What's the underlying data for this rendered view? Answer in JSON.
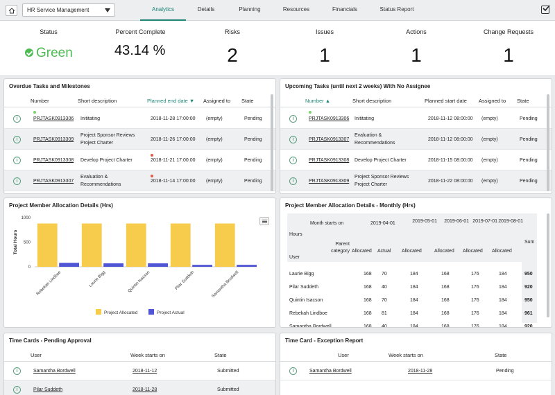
{
  "topbar": {
    "dropdown_value": "HR Service Management",
    "tabs": [
      "Analytics",
      "Details",
      "Planning",
      "Resources",
      "Financials",
      "Status Report"
    ],
    "active_tab": "Analytics"
  },
  "kpis": {
    "status_label": "Status",
    "status_value": "Green",
    "percent_label": "Percent Complete",
    "percent_value": "43.14 %",
    "risks_label": "Risks",
    "risks_value": "2",
    "issues_label": "Issues",
    "issues_value": "1",
    "actions_label": "Actions",
    "actions_value": "1",
    "change_label": "Change Requests",
    "change_value": "1"
  },
  "overdue": {
    "title": "Overdue Tasks and Milestones",
    "columns": [
      "Number",
      "Short description",
      "Planned end date",
      "Assigned to",
      "State"
    ],
    "rows": [
      {
        "number": "PRJTASK0913306",
        "desc1": "Inititating",
        "desc2": "",
        "date": "2018-11-28 17:00:00",
        "assigned": "(empty)",
        "state": "Pending"
      },
      {
        "number": "PRJTASK0913309",
        "desc1": "Project Sponsor Reviews",
        "desc2": "Project Charter",
        "date": "2018-11-26 17:00:00",
        "assigned": "(empty)",
        "state": "Pending"
      },
      {
        "number": "PRJTASK0913308",
        "desc1": "Develop Project Charter",
        "desc2": "",
        "date": "2018-11-21 17:00:00",
        "assigned": "(empty)",
        "state": "Pending"
      },
      {
        "number": "PRJTASK0913307",
        "desc1": "Evaluation &",
        "desc2": "Recommendations",
        "date": "2018-11-14 17:00:00",
        "assigned": "(empty)",
        "state": "Pending"
      }
    ]
  },
  "upcoming": {
    "title": "Upcoming Tasks (until next 2 weeks) With No Assignee",
    "columns": [
      "Number",
      "Short description",
      "Planned start date",
      "Assigned to",
      "State"
    ],
    "rows": [
      {
        "number": "PRJTASK0913306",
        "desc1": "Inititating",
        "desc2": "",
        "date": "2018-11-12 08:00:00",
        "assigned": "(empty)",
        "state": "Pending"
      },
      {
        "number": "PRJTASK0913307",
        "desc1": "Evaluation &",
        "desc2": "Recommendations",
        "date": "2018-11-12 08:00:00",
        "assigned": "(empty)",
        "state": "Pending"
      },
      {
        "number": "PRJTASK0913308",
        "desc1": "Develop Project Charter",
        "desc2": "",
        "date": "2018-11-15 08:00:00",
        "assigned": "(empty)",
        "state": "Pending"
      },
      {
        "number": "PRJTASK0913309",
        "desc1": "Project Sponsor Reviews",
        "desc2": "Project Charter",
        "date": "2018-11-22 08:00:00",
        "assigned": "(empty)",
        "state": "Pending"
      }
    ]
  },
  "allocation": {
    "title": "Project Member Allocation Details (Hrs)"
  },
  "chart_data": {
    "type": "bar",
    "categories": [
      "Rebekah Lindboe",
      "Laurie Bigg",
      "Quintin Isacson",
      "Pilar Suddeth",
      "Samantha Bordwell"
    ],
    "series": [
      {
        "name": "Project Allocated",
        "values": [
          880,
          880,
          880,
          880,
          880
        ],
        "color": "#f7cc4c"
      },
      {
        "name": "Project Actual",
        "values": [
          81,
          70,
          70,
          40,
          40
        ],
        "color": "#4f56d6"
      }
    ],
    "ylabel": "Total Hours",
    "ylim": [
      0,
      1000
    ],
    "yticks": [
      0,
      500,
      1000
    ],
    "ytick_labels": [
      "0",
      "500",
      "1000"
    ]
  },
  "monthly": {
    "title": "Project Member Allocation Details - Monthly (Hrs)",
    "hours_label": "Hours",
    "month_label": "Month starts on",
    "parent_label": "Parent category",
    "user_label": "User",
    "months": [
      "2019-04-01",
      "2019-05-01",
      "2019-06-01",
      "2019-07-01",
      "2019-08-01"
    ],
    "sub_cols": [
      "Allocated",
      "Actual",
      "Allocated",
      "Allocated",
      "Allocated",
      "Allocated"
    ],
    "sum_label": "Sum",
    "rows": [
      {
        "user": "Laurie Bigg",
        "v": [
          "168",
          "70",
          "184",
          "168",
          "176",
          "184"
        ],
        "sum": "950"
      },
      {
        "user": "Pilar Suddeth",
        "v": [
          "168",
          "40",
          "184",
          "168",
          "176",
          "184"
        ],
        "sum": "920"
      },
      {
        "user": "Quintin Isacson",
        "v": [
          "168",
          "70",
          "184",
          "168",
          "176",
          "184"
        ],
        "sum": "950"
      },
      {
        "user": "Rebekah Lindboe",
        "v": [
          "168",
          "81",
          "184",
          "168",
          "176",
          "184"
        ],
        "sum": "961"
      },
      {
        "user": "Samantha Bordwell",
        "v": [
          "168",
          "40",
          "184",
          "168",
          "176",
          "184"
        ],
        "sum": "920"
      }
    ]
  },
  "timecards": {
    "title": "Time Cards - Pending Approval",
    "columns": [
      "User",
      "Week starts on",
      "State"
    ],
    "rows": [
      {
        "user": "Samantha Bordwell",
        "week": "2018-11-12",
        "state": "Submitted"
      },
      {
        "user": "Pilar Suddeth",
        "week": "2018-11-28",
        "state": "Submitted"
      }
    ]
  },
  "exception": {
    "title": "Time Card - Exception Report",
    "columns": [
      "User",
      "Week starts on",
      "State"
    ],
    "rows": [
      {
        "user": "Samantha Bordwell",
        "week": "2018-11-28",
        "state": "Pending"
      }
    ]
  },
  "colors": {
    "accent": "#1f8476",
    "green": "#4bbb52",
    "allocated": "#f7cc4c",
    "actual": "#4f56d6"
  }
}
